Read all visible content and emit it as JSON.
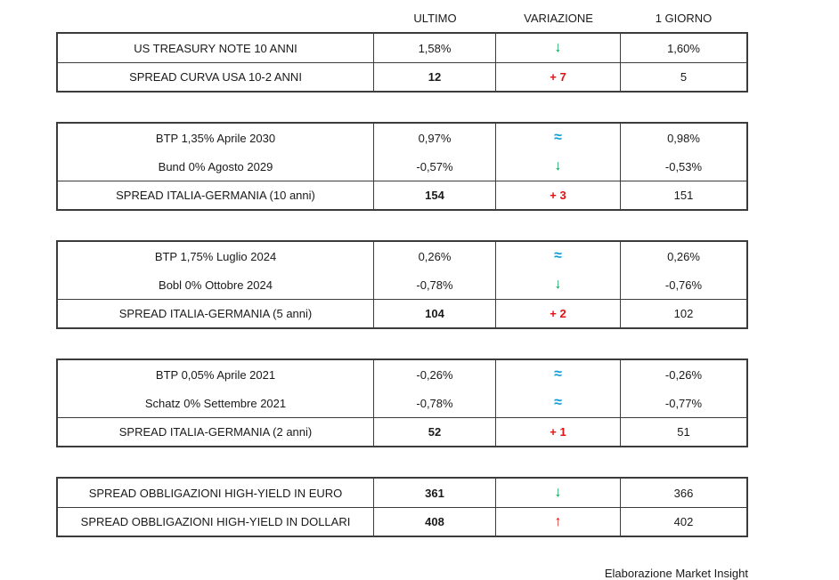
{
  "page": {
    "footer": "Elaborazione Market Insight"
  },
  "colors": {
    "green": "#00a651",
    "red": "#e31111",
    "blue": "#0b9dd8"
  },
  "chart_data": {
    "type": "table",
    "columns": [
      "ULTIMO",
      "VARIAZIONE",
      "1 GIORNO"
    ],
    "tables": [
      {
        "rows": [
          {
            "label": "US TREASURY NOTE 10 ANNI",
            "ultimo": "1,58%",
            "var": "↓",
            "var_color": "green",
            "var_icon": "down-arrow-icon",
            "giorno": "1,60%",
            "bold": false,
            "divider": false
          },
          {
            "label": "SPREAD CURVA USA 10-2 ANNI",
            "ultimo": "12",
            "var": "+ 7",
            "var_color": "red",
            "var_icon": "variation-delta",
            "giorno": "5",
            "bold": true,
            "divider": true
          }
        ]
      },
      {
        "rows": [
          {
            "label": "BTP 1,35% Aprile 2030",
            "ultimo": "0,97%",
            "var": "≈",
            "var_color": "blue",
            "var_icon": "approx-icon",
            "giorno": "0,98%",
            "bold": false,
            "divider": false
          },
          {
            "label": "Bund 0% Agosto 2029",
            "ultimo": "-0,57%",
            "var": "↓",
            "var_color": "green",
            "var_icon": "down-arrow-icon",
            "giorno": "-0,53%",
            "bold": false,
            "divider": false
          },
          {
            "label": "SPREAD ITALIA-GERMANIA (10 anni)",
            "ultimo": "154",
            "var": "+ 3",
            "var_color": "red",
            "var_icon": "variation-delta",
            "giorno": "151",
            "bold": true,
            "divider": true
          }
        ]
      },
      {
        "rows": [
          {
            "label": "BTP 1,75% Luglio 2024",
            "ultimo": "0,26%",
            "var": "≈",
            "var_color": "blue",
            "var_icon": "approx-icon",
            "giorno": "0,26%",
            "bold": false,
            "divider": false
          },
          {
            "label": "Bobl 0% Ottobre 2024",
            "ultimo": "-0,78%",
            "var": "↓",
            "var_color": "green",
            "var_icon": "down-arrow-icon",
            "giorno": "-0,76%",
            "bold": false,
            "divider": false
          },
          {
            "label": "SPREAD ITALIA-GERMANIA (5 anni)",
            "ultimo": "104",
            "var": "+ 2",
            "var_color": "red",
            "var_icon": "variation-delta",
            "giorno": "102",
            "bold": true,
            "divider": true
          }
        ]
      },
      {
        "rows": [
          {
            "label": "BTP 0,05% Aprile 2021",
            "ultimo": "-0,26%",
            "var": "≈",
            "var_color": "blue",
            "var_icon": "approx-icon",
            "giorno": "-0,26%",
            "bold": false,
            "divider": false
          },
          {
            "label": "Schatz 0% Settembre 2021",
            "ultimo": "-0,78%",
            "var": "≈",
            "var_color": "blue",
            "var_icon": "approx-icon",
            "giorno": "-0,77%",
            "bold": false,
            "divider": false
          },
          {
            "label": "SPREAD ITALIA-GERMANIA (2 anni)",
            "ultimo": "52",
            "var": "+ 1",
            "var_color": "red",
            "var_icon": "variation-delta",
            "giorno": "51",
            "bold": true,
            "divider": true
          }
        ]
      },
      {
        "rows": [
          {
            "label": "SPREAD OBBLIGAZIONI HIGH-YIELD IN EURO",
            "ultimo": "361",
            "var": "↓",
            "var_color": "green",
            "var_icon": "down-arrow-icon",
            "giorno": "366",
            "bold": true,
            "divider": false
          },
          {
            "label": "SPREAD OBBLIGAZIONI HIGH-YIELD IN DOLLARI",
            "ultimo": "408",
            "var": "↑",
            "var_color": "red",
            "var_icon": "up-arrow-icon",
            "giorno": "402",
            "bold": true,
            "divider": true
          }
        ]
      }
    ]
  }
}
